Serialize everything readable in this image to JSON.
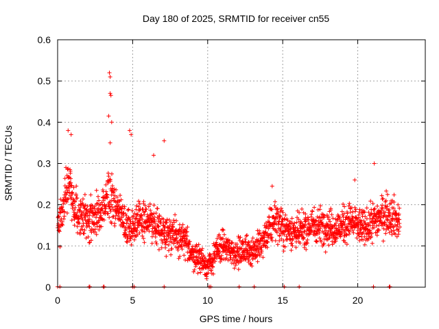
{
  "chart_data": {
    "type": "scatter",
    "title": "Day 180 of 2025, SRMTID for receiver cn55",
    "xlabel": "GPS time / hours",
    "ylabel": "SRMTID / TECUs",
    "xlim": [
      0,
      24.5
    ],
    "ylim": [
      0,
      0.6
    ],
    "x_ticks": [
      0,
      5,
      10,
      15,
      20
    ],
    "x_tick_labels": [
      "0",
      "5",
      "10",
      "15",
      "20"
    ],
    "y_ticks": [
      0,
      0.1,
      0.2,
      0.3,
      0.4,
      0.5,
      0.6
    ],
    "y_tick_labels": [
      "0",
      "0.1",
      "0.2",
      "0.3",
      "0.4",
      "0.5",
      "0.6"
    ],
    "grid": true,
    "marker": "plus",
    "color": "#ff0000",
    "series": [
      {
        "name": "SRMTID",
        "trend": [
          [
            0.0,
            0.15
          ],
          [
            0.3,
            0.17
          ],
          [
            0.5,
            0.24
          ],
          [
            0.8,
            0.25
          ],
          [
            1.0,
            0.2
          ],
          [
            1.5,
            0.18
          ],
          [
            2.0,
            0.16
          ],
          [
            2.5,
            0.17
          ],
          [
            3.0,
            0.18
          ],
          [
            3.3,
            0.21
          ],
          [
            3.6,
            0.22
          ],
          [
            4.0,
            0.19
          ],
          [
            4.3,
            0.17
          ],
          [
            4.6,
            0.14
          ],
          [
            5.0,
            0.15
          ],
          [
            5.5,
            0.17
          ],
          [
            6.0,
            0.16
          ],
          [
            6.5,
            0.15
          ],
          [
            7.0,
            0.14
          ],
          [
            7.5,
            0.13
          ],
          [
            8.0,
            0.12
          ],
          [
            8.5,
            0.11
          ],
          [
            9.0,
            0.08
          ],
          [
            9.5,
            0.07
          ],
          [
            10.0,
            0.05
          ],
          [
            10.3,
            0.06
          ],
          [
            10.6,
            0.09
          ],
          [
            11.0,
            0.1
          ],
          [
            11.5,
            0.09
          ],
          [
            12.0,
            0.08
          ],
          [
            12.5,
            0.09
          ],
          [
            13.0,
            0.09
          ],
          [
            13.5,
            0.1
          ],
          [
            14.0,
            0.13
          ],
          [
            14.5,
            0.17
          ],
          [
            15.0,
            0.14
          ],
          [
            15.5,
            0.14
          ],
          [
            16.0,
            0.13
          ],
          [
            16.5,
            0.14
          ],
          [
            17.0,
            0.15
          ],
          [
            17.5,
            0.15
          ],
          [
            18.0,
            0.15
          ],
          [
            18.5,
            0.14
          ],
          [
            19.0,
            0.15
          ],
          [
            19.5,
            0.16
          ],
          [
            20.0,
            0.15
          ],
          [
            20.5,
            0.14
          ],
          [
            21.0,
            0.16
          ],
          [
            21.5,
            0.17
          ],
          [
            22.0,
            0.18
          ],
          [
            22.5,
            0.17
          ],
          [
            22.8,
            0.15
          ]
        ],
        "spread": 0.055,
        "samples_per_hour": 90,
        "peaks": [
          [
            0.7,
            0.38
          ],
          [
            0.9,
            0.37
          ],
          [
            3.45,
            0.52
          ],
          [
            3.5,
            0.51
          ],
          [
            3.5,
            0.47
          ],
          [
            3.55,
            0.465
          ],
          [
            3.4,
            0.415
          ],
          [
            3.6,
            0.4
          ],
          [
            3.5,
            0.35
          ],
          [
            4.8,
            0.38
          ],
          [
            4.9,
            0.37
          ],
          [
            7.1,
            0.355
          ],
          [
            6.4,
            0.32
          ],
          [
            21.1,
            0.3
          ],
          [
            14.3,
            0.245
          ],
          [
            19.8,
            0.26
          ]
        ],
        "baseline_points": [
          0.0,
          0.15,
          2.1,
          2.15,
          3.05,
          3.1,
          5.0,
          5.1,
          7.1,
          10.1,
          10.2,
          12.1,
          13.1,
          15.1,
          16.1,
          21.05,
          22.1,
          22.15
        ]
      }
    ]
  }
}
